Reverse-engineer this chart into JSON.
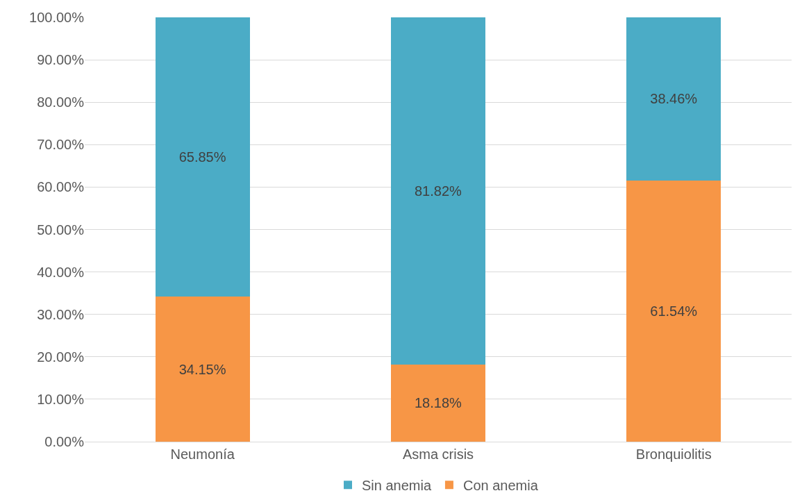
{
  "chart_data": {
    "type": "bar",
    "stacked": true,
    "categories": [
      "Neumonía",
      "Asma crisis",
      "Bronquiolitis"
    ],
    "series": [
      {
        "name": "Con anemia",
        "color": "#f79646",
        "values": [
          34.15,
          18.18,
          61.54
        ],
        "value_labels": [
          "34.15%",
          "18.18%",
          "61.54%"
        ]
      },
      {
        "name": "Sin anemia",
        "color": "#4bacc6",
        "values": [
          65.85,
          81.82,
          38.46
        ],
        "value_labels": [
          "65.85%",
          "81.82%",
          "38.46%"
        ]
      }
    ],
    "ylim": [
      0,
      100
    ],
    "yticks": [
      {
        "value": 0,
        "label": "0.00%"
      },
      {
        "value": 10,
        "label": "10.00%"
      },
      {
        "value": 20,
        "label": "20.00%"
      },
      {
        "value": 30,
        "label": "30.00%"
      },
      {
        "value": 40,
        "label": "40.00%"
      },
      {
        "value": 50,
        "label": "50.00%"
      },
      {
        "value": 60,
        "label": "60.00%"
      },
      {
        "value": 70,
        "label": "70.00%"
      },
      {
        "value": 80,
        "label": "80.00%"
      },
      {
        "value": 90,
        "label": "90.00%"
      },
      {
        "value": 100,
        "label": "100.00%"
      }
    ],
    "grid": "y",
    "legend": "bottom"
  }
}
